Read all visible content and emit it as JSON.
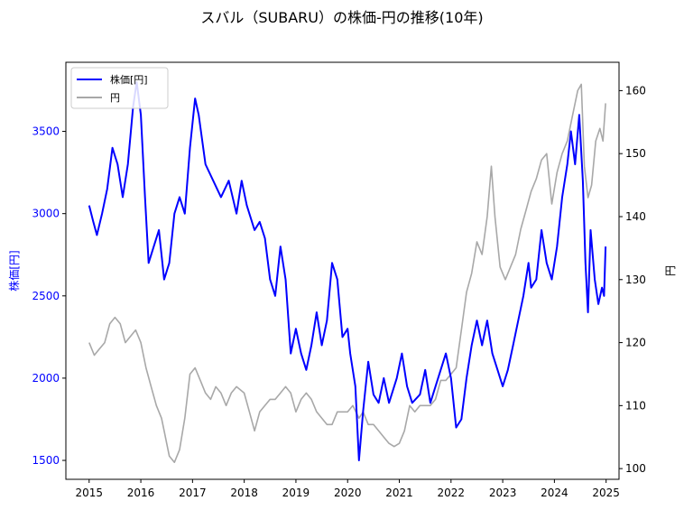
{
  "chart_data": {
    "type": "line",
    "title": "スバル（SUBARU）の株価-円の推移(10年)",
    "ylabel_left": "株価[円]",
    "ylabel_right": "円",
    "xlabel": "",
    "x_ticks": [
      "2015",
      "2016",
      "2017",
      "2018",
      "2019",
      "2020",
      "2021",
      "2022",
      "2023",
      "2024",
      "2025"
    ],
    "y_left_ticks": [
      "1500",
      "2000",
      "2500",
      "3000",
      "3500"
    ],
    "y_right_ticks": [
      "100",
      "110",
      "120",
      "130",
      "140",
      "150",
      "160"
    ],
    "xlim": [
      2014.55,
      2025.25
    ],
    "ylim_left": [
      1385,
      3920
    ],
    "ylim_right": [
      98.3,
      164.5
    ],
    "legend_position": "upper-left",
    "grid": false,
    "colors": {
      "stock": "#0000ff",
      "fx": "#a8a8a8"
    },
    "series": [
      {
        "name": "株価[円]",
        "axis": "left",
        "points": [
          [
            2015.0,
            3050
          ],
          [
            2015.08,
            2950
          ],
          [
            2015.15,
            2870
          ],
          [
            2015.25,
            3000
          ],
          [
            2015.35,
            3150
          ],
          [
            2015.45,
            3400
          ],
          [
            2015.55,
            3300
          ],
          [
            2015.65,
            3100
          ],
          [
            2015.75,
            3300
          ],
          [
            2015.85,
            3650
          ],
          [
            2015.92,
            3800
          ],
          [
            2016.0,
            3600
          ],
          [
            2016.08,
            3100
          ],
          [
            2016.15,
            2700
          ],
          [
            2016.25,
            2800
          ],
          [
            2016.35,
            2900
          ],
          [
            2016.45,
            2600
          ],
          [
            2016.55,
            2700
          ],
          [
            2016.65,
            3000
          ],
          [
            2016.75,
            3100
          ],
          [
            2016.85,
            3000
          ],
          [
            2016.95,
            3400
          ],
          [
            2017.05,
            3700
          ],
          [
            2017.12,
            3600
          ],
          [
            2017.25,
            3300
          ],
          [
            2017.4,
            3200
          ],
          [
            2017.55,
            3100
          ],
          [
            2017.7,
            3200
          ],
          [
            2017.85,
            3000
          ],
          [
            2017.95,
            3200
          ],
          [
            2018.05,
            3050
          ],
          [
            2018.2,
            2900
          ],
          [
            2018.3,
            2950
          ],
          [
            2018.4,
            2850
          ],
          [
            2018.5,
            2600
          ],
          [
            2018.6,
            2500
          ],
          [
            2018.7,
            2800
          ],
          [
            2018.8,
            2600
          ],
          [
            2018.9,
            2150
          ],
          [
            2019.0,
            2300
          ],
          [
            2019.1,
            2150
          ],
          [
            2019.2,
            2050
          ],
          [
            2019.3,
            2200
          ],
          [
            2019.4,
            2400
          ],
          [
            2019.5,
            2200
          ],
          [
            2019.6,
            2350
          ],
          [
            2019.7,
            2700
          ],
          [
            2019.8,
            2600
          ],
          [
            2019.9,
            2250
          ],
          [
            2020.0,
            2300
          ],
          [
            2020.05,
            2150
          ],
          [
            2020.15,
            1950
          ],
          [
            2020.22,
            1500
          ],
          [
            2020.3,
            1800
          ],
          [
            2020.4,
            2100
          ],
          [
            2020.5,
            1900
          ],
          [
            2020.6,
            1850
          ],
          [
            2020.7,
            2000
          ],
          [
            2020.8,
            1850
          ],
          [
            2020.95,
            2000
          ],
          [
            2021.05,
            2150
          ],
          [
            2021.15,
            1950
          ],
          [
            2021.25,
            1850
          ],
          [
            2021.4,
            1900
          ],
          [
            2021.5,
            2050
          ],
          [
            2021.6,
            1850
          ],
          [
            2021.75,
            2000
          ],
          [
            2021.9,
            2150
          ],
          [
            2022.0,
            2000
          ],
          [
            2022.1,
            1700
          ],
          [
            2022.2,
            1750
          ],
          [
            2022.3,
            2000
          ],
          [
            2022.4,
            2200
          ],
          [
            2022.5,
            2350
          ],
          [
            2022.6,
            2200
          ],
          [
            2022.7,
            2350
          ],
          [
            2022.8,
            2150
          ],
          [
            2022.9,
            2050
          ],
          [
            2023.0,
            1950
          ],
          [
            2023.1,
            2050
          ],
          [
            2023.2,
            2200
          ],
          [
            2023.3,
            2350
          ],
          [
            2023.4,
            2500
          ],
          [
            2023.5,
            2700
          ],
          [
            2023.55,
            2550
          ],
          [
            2023.65,
            2600
          ],
          [
            2023.75,
            2900
          ],
          [
            2023.85,
            2700
          ],
          [
            2023.95,
            2600
          ],
          [
            2024.05,
            2800
          ],
          [
            2024.15,
            3100
          ],
          [
            2024.25,
            3300
          ],
          [
            2024.32,
            3500
          ],
          [
            2024.4,
            3300
          ],
          [
            2024.48,
            3600
          ],
          [
            2024.55,
            3200
          ],
          [
            2024.6,
            2700
          ],
          [
            2024.65,
            2400
          ],
          [
            2024.7,
            2900
          ],
          [
            2024.78,
            2600
          ],
          [
            2024.85,
            2450
          ],
          [
            2024.92,
            2550
          ],
          [
            2024.96,
            2500
          ],
          [
            2024.99,
            2800
          ]
        ]
      },
      {
        "name": "円",
        "axis": "right",
        "points": [
          [
            2015.0,
            120
          ],
          [
            2015.1,
            118
          ],
          [
            2015.2,
            119
          ],
          [
            2015.3,
            120
          ],
          [
            2015.4,
            123
          ],
          [
            2015.5,
            124
          ],
          [
            2015.6,
            123
          ],
          [
            2015.7,
            120
          ],
          [
            2015.8,
            121
          ],
          [
            2015.9,
            122
          ],
          [
            2016.0,
            120
          ],
          [
            2016.1,
            116
          ],
          [
            2016.2,
            113
          ],
          [
            2016.3,
            110
          ],
          [
            2016.4,
            108
          ],
          [
            2016.45,
            106
          ],
          [
            2016.55,
            102
          ],
          [
            2016.65,
            101
          ],
          [
            2016.75,
            103
          ],
          [
            2016.85,
            108
          ],
          [
            2016.95,
            115
          ],
          [
            2017.05,
            116
          ],
          [
            2017.15,
            114
          ],
          [
            2017.25,
            112
          ],
          [
            2017.35,
            111
          ],
          [
            2017.45,
            113
          ],
          [
            2017.55,
            112
          ],
          [
            2017.65,
            110
          ],
          [
            2017.75,
            112
          ],
          [
            2017.85,
            113
          ],
          [
            2018.0,
            112
          ],
          [
            2018.1,
            109
          ],
          [
            2018.2,
            106
          ],
          [
            2018.3,
            109
          ],
          [
            2018.4,
            110
          ],
          [
            2018.5,
            111
          ],
          [
            2018.6,
            111
          ],
          [
            2018.7,
            112
          ],
          [
            2018.8,
            113
          ],
          [
            2018.9,
            112
          ],
          [
            2019.0,
            109
          ],
          [
            2019.1,
            111
          ],
          [
            2019.2,
            112
          ],
          [
            2019.3,
            111
          ],
          [
            2019.4,
            109
          ],
          [
            2019.5,
            108
          ],
          [
            2019.6,
            107
          ],
          [
            2019.7,
            107
          ],
          [
            2019.8,
            109
          ],
          [
            2019.9,
            109
          ],
          [
            2020.0,
            109
          ],
          [
            2020.1,
            110
          ],
          [
            2020.22,
            108
          ],
          [
            2020.3,
            109
          ],
          [
            2020.4,
            107
          ],
          [
            2020.5,
            107
          ],
          [
            2020.6,
            106
          ],
          [
            2020.7,
            105
          ],
          [
            2020.8,
            104
          ],
          [
            2020.9,
            103.5
          ],
          [
            2021.0,
            104
          ],
          [
            2021.1,
            106
          ],
          [
            2021.2,
            110
          ],
          [
            2021.3,
            109
          ],
          [
            2021.4,
            110
          ],
          [
            2021.5,
            110
          ],
          [
            2021.6,
            110
          ],
          [
            2021.7,
            111
          ],
          [
            2021.8,
            114
          ],
          [
            2021.9,
            114
          ],
          [
            2022.0,
            115
          ],
          [
            2022.1,
            116
          ],
          [
            2022.2,
            122
          ],
          [
            2022.3,
            128
          ],
          [
            2022.4,
            131
          ],
          [
            2022.5,
            136
          ],
          [
            2022.6,
            134
          ],
          [
            2022.7,
            140
          ],
          [
            2022.78,
            148
          ],
          [
            2022.85,
            140
          ],
          [
            2022.95,
            132
          ],
          [
            2023.05,
            130
          ],
          [
            2023.15,
            132
          ],
          [
            2023.25,
            134
          ],
          [
            2023.35,
            138
          ],
          [
            2023.45,
            141
          ],
          [
            2023.55,
            144
          ],
          [
            2023.65,
            146
          ],
          [
            2023.75,
            149
          ],
          [
            2023.85,
            150
          ],
          [
            2023.95,
            142
          ],
          [
            2024.05,
            147
          ],
          [
            2024.15,
            150
          ],
          [
            2024.25,
            152
          ],
          [
            2024.35,
            156
          ],
          [
            2024.45,
            160
          ],
          [
            2024.52,
            161
          ],
          [
            2024.58,
            148
          ],
          [
            2024.65,
            143
          ],
          [
            2024.72,
            145
          ],
          [
            2024.8,
            152
          ],
          [
            2024.88,
            154
          ],
          [
            2024.94,
            152
          ],
          [
            2024.99,
            158
          ]
        ]
      }
    ]
  }
}
